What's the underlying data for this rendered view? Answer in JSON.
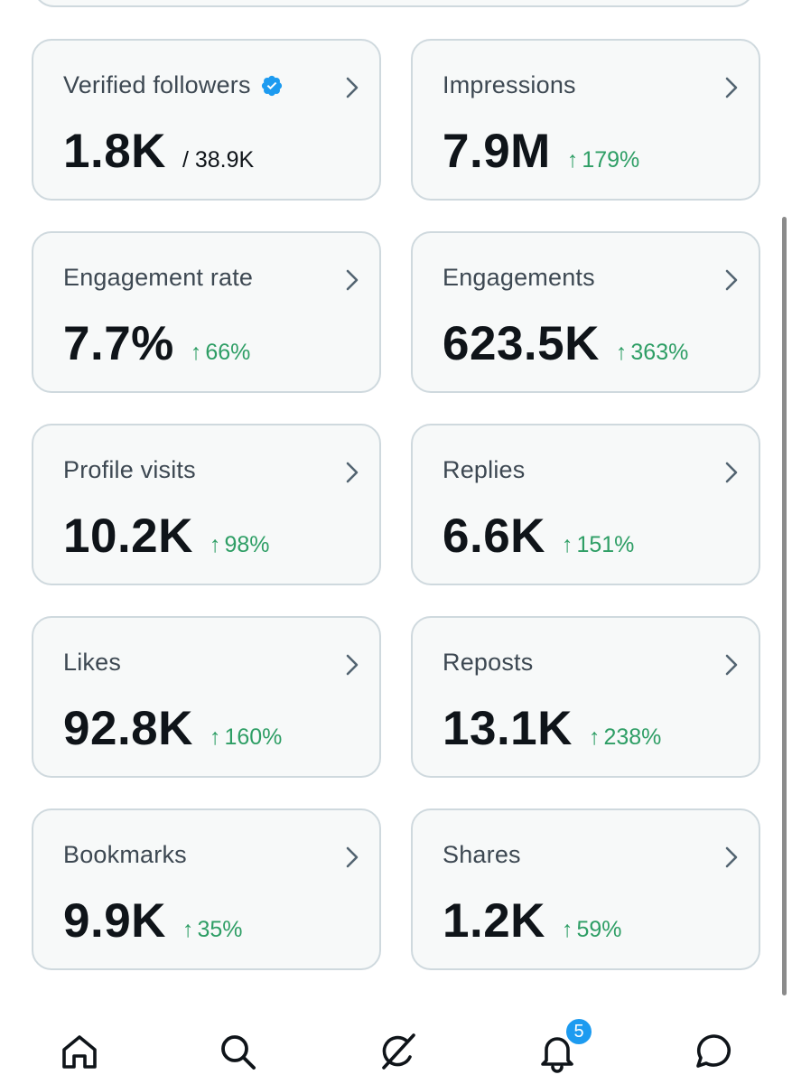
{
  "metrics": [
    {
      "title": "Verified followers",
      "value": "1.8K",
      "sub": "/ 38.9K",
      "delta": "",
      "verified": true
    },
    {
      "title": "Impressions",
      "value": "7.9M",
      "sub": "",
      "delta": "179%"
    },
    {
      "title": "Engagement rate",
      "value": "7.7%",
      "sub": "",
      "delta": "66%"
    },
    {
      "title": "Engagements",
      "value": "623.5K",
      "sub": "",
      "delta": "363%"
    },
    {
      "title": "Profile visits",
      "value": "10.2K",
      "sub": "",
      "delta": "98%"
    },
    {
      "title": "Replies",
      "value": "6.6K",
      "sub": "",
      "delta": "151%"
    },
    {
      "title": "Likes",
      "value": "92.8K",
      "sub": "",
      "delta": "160%"
    },
    {
      "title": "Reposts",
      "value": "13.1K",
      "sub": "",
      "delta": "238%"
    },
    {
      "title": "Bookmarks",
      "value": "9.9K",
      "sub": "",
      "delta": "35%"
    },
    {
      "title": "Shares",
      "value": "1.2K",
      "sub": "",
      "delta": "59%"
    }
  ],
  "delta_arrow": "↑",
  "nav": {
    "items": [
      "home-icon",
      "search-icon",
      "grok-icon",
      "notifications-icon",
      "messages-icon"
    ],
    "notifications_badge": "5"
  },
  "colors": {
    "accent": "#1d9bf0",
    "positive": "#2e9e65",
    "card_bg": "#f7f9f9",
    "card_border": "#cfd9de"
  }
}
